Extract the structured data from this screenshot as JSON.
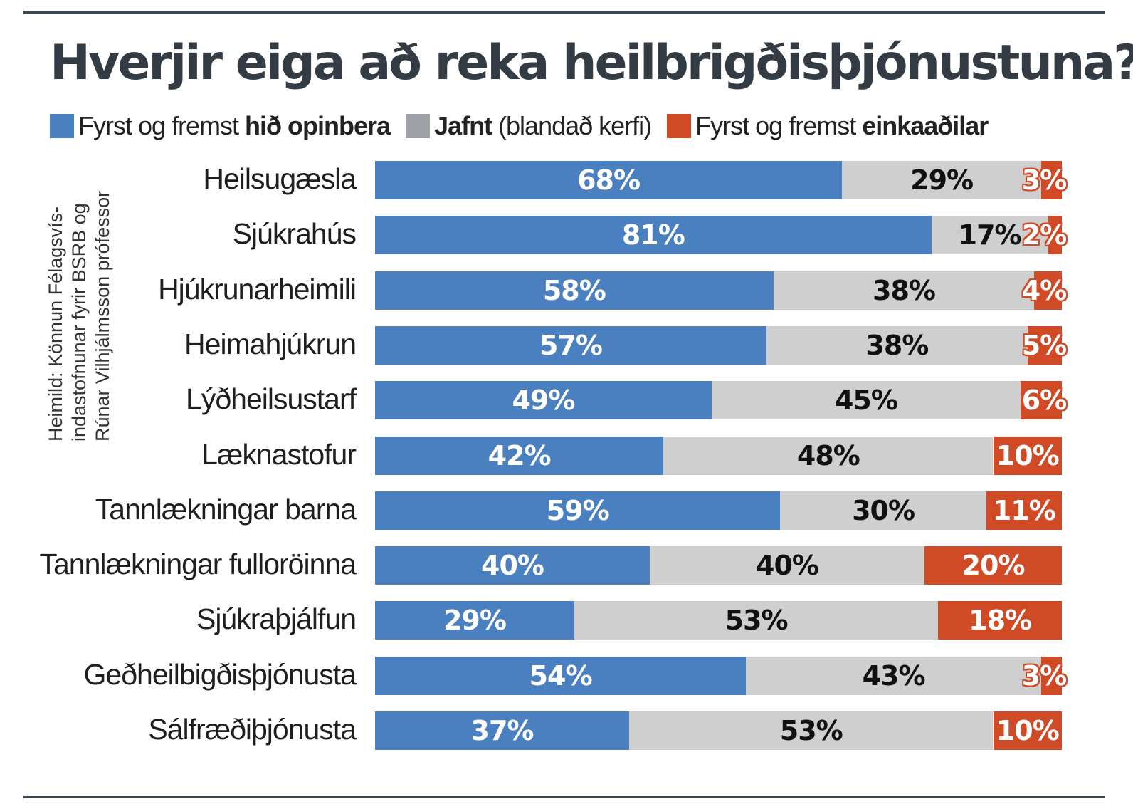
{
  "title": "Hverjir eiga að reka heilbrigðisþjónustuna?",
  "legend": [
    {
      "text": "Fyrst og fremst ",
      "bold": "hið opinbera",
      "color": "#4a7fc0"
    },
    {
      "text": " (blandað kerfi)",
      "bold": "Jafnt",
      "bold_first": true,
      "color": "#9ea2a6"
    },
    {
      "text": "Fyrst og fremst ",
      "bold": "einkaaðilar",
      "color": "#d14a26"
    }
  ],
  "source": [
    "Heimild: Könnun Félagsvís-",
    "indastofnunar fyrir BSRB og",
    "Rúnar Vilhjálmsson prófessor"
  ],
  "colors": {
    "public": "#4a7fc0",
    "mixed": "#cfcfcf",
    "private": "#d14a26"
  },
  "chart_data": {
    "type": "bar",
    "stacked": true,
    "orientation": "horizontal",
    "categories": [
      "Heilsugæsla",
      "Sjúkrahús",
      "Hjúkrunarheimili",
      "Heimahjúkrun",
      "Lýðheilsustarf",
      "Læknastofur",
      "Tannlækningar barna",
      "Tannlækningar fulloröinna",
      "Sjúkraþjálfun",
      "Geðheilbigðisþjónusta",
      "Sálfræðiþjónusta"
    ],
    "series": [
      {
        "name": "Fyrst og fremst hið opinbera",
        "values": [
          68,
          81,
          58,
          57,
          49,
          42,
          59,
          40,
          29,
          54,
          37
        ]
      },
      {
        "name": "Jafnt (blandað kerfi)",
        "values": [
          29,
          17,
          38,
          38,
          45,
          48,
          30,
          40,
          53,
          43,
          53
        ]
      },
      {
        "name": "Fyrst og fremst einkaaðilar",
        "values": [
          3,
          2,
          4,
          5,
          6,
          10,
          11,
          20,
          18,
          3,
          10
        ]
      }
    ],
    "labels": {
      "public": [
        "68%",
        "81%",
        "58%",
        "57%",
        "49%",
        "42%",
        "59%",
        "40%",
        "29%",
        "54%",
        "37%"
      ],
      "mixed": [
        "29%",
        "17%",
        "38%",
        "38%",
        "45%",
        "48%",
        "30%",
        "40%",
        "53%",
        "43%",
        "53%"
      ],
      "private": [
        "3%",
        "2%",
        "4%",
        "5%",
        "6%",
        "10%",
        "11%",
        "20%",
        "18%",
        "3%",
        "10%"
      ]
    },
    "xlim": [
      0,
      100
    ],
    "grid": false,
    "legend_position": "top"
  }
}
